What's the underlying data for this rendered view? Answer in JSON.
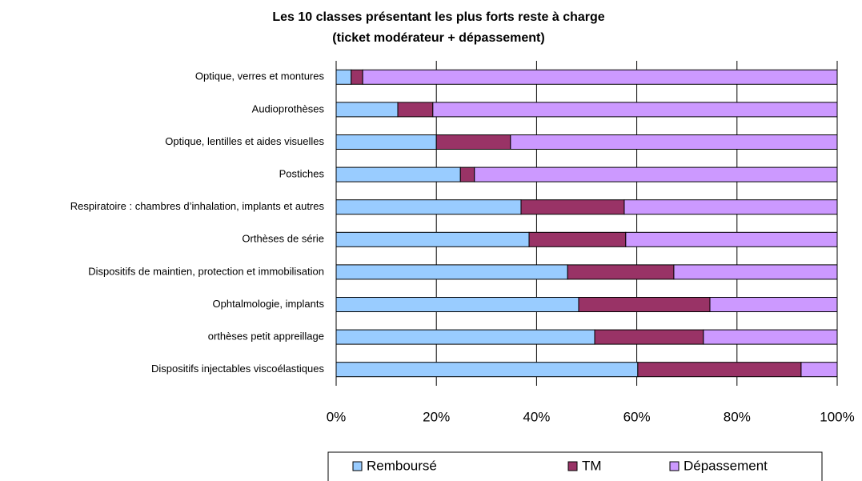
{
  "chart_data": {
    "type": "stacked_bar_horizontal",
    "title": [
      "Les 10 classes présentant les plus forts reste à charge",
      "(ticket modérateur + dépassement)"
    ],
    "categories": [
      "Optique, verres et montures",
      "Audioprothèses",
      "Optique, lentilles et aides visuelles",
      "Postiches",
      "Respiratoire : chambres d’inhalation, implants et autres",
      "Orthèses de série",
      "Dispositifs de maintien, protection et immobilisation",
      "Ophtalmologie, implants",
      "orthèses petit appreillage",
      "Dispositifs injectables viscoélastiques"
    ],
    "series": [
      {
        "name": "Remboursé",
        "color": "#99ccff",
        "values": [
          3.0,
          12.3,
          20.0,
          24.8,
          36.9,
          38.5,
          46.2,
          48.4,
          51.6,
          60.2
        ]
      },
      {
        "name": "TM",
        "color": "#993366",
        "values": [
          2.3,
          7.0,
          14.8,
          2.8,
          20.6,
          19.3,
          21.2,
          26.2,
          21.7,
          32.6
        ]
      },
      {
        "name": "Dépassement",
        "color": "#cc99ff",
        "values": [
          94.7,
          80.7,
          65.2,
          72.4,
          42.5,
          42.2,
          32.6,
          25.4,
          26.7,
          7.2
        ]
      }
    ],
    "xlim": [
      0,
      100
    ],
    "xticks": [
      {
        "value": 0,
        "label": "0%"
      },
      {
        "value": 20,
        "label": "20%"
      },
      {
        "value": 40,
        "label": "40%"
      },
      {
        "value": 60,
        "label": "60%"
      },
      {
        "value": 80,
        "label": "80%"
      },
      {
        "value": 100,
        "label": "100%"
      }
    ],
    "grid": true,
    "legend": "bottom"
  }
}
